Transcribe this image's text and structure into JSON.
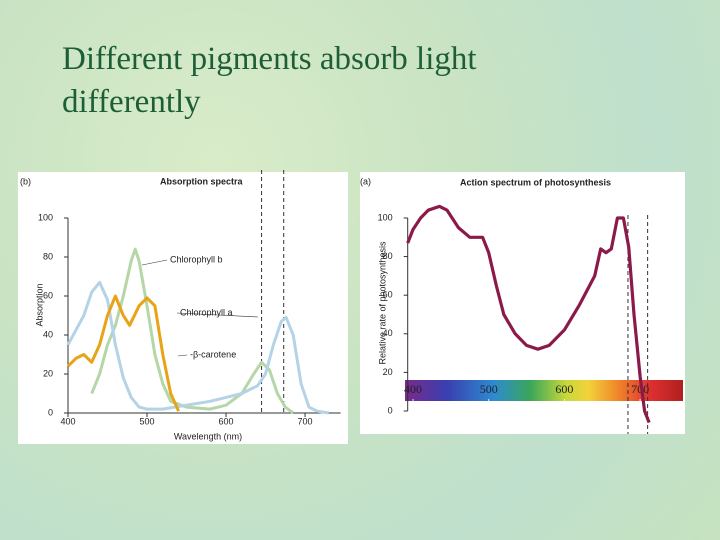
{
  "slide_title": "Different pigments absorb light differently",
  "chart_data": [
    {
      "type": "line",
      "panel": "(b)",
      "title": "Absorption spectra",
      "x_label": "Wavelength (nm)",
      "y_label": "Absorption",
      "xlim": [
        400,
        745
      ],
      "ylim": [
        0,
        114
      ],
      "xticks": [
        400,
        500,
        600,
        700
      ],
      "yticks": [
        0,
        20,
        40,
        60,
        80,
        100
      ],
      "vlines": [
        645,
        673
      ],
      "series": [
        {
          "name": "Chlorophyll b",
          "color": "#b5d6a7",
          "x": [
            430,
            440,
            450,
            460,
            470,
            480,
            485,
            490,
            500,
            510,
            520,
            530,
            550,
            580,
            600,
            620,
            635,
            645,
            655,
            665,
            675,
            685
          ],
          "values": [
            10,
            20,
            35,
            45,
            60,
            78,
            84,
            78,
            55,
            30,
            15,
            6,
            3,
            2,
            4,
            10,
            20,
            26,
            22,
            10,
            3,
            0
          ]
        },
        {
          "name": "Chlorophyll a",
          "color": "#b4d3e6",
          "x": [
            400,
            420,
            430,
            440,
            450,
            460,
            470,
            480,
            490,
            500,
            520,
            550,
            580,
            600,
            620,
            640,
            650,
            660,
            670,
            676,
            685,
            695,
            705,
            715,
            730
          ],
          "values": [
            35,
            50,
            62,
            67,
            58,
            35,
            18,
            8,
            3,
            2,
            2,
            4,
            6,
            8,
            10,
            14,
            20,
            35,
            47,
            49,
            40,
            15,
            3,
            1,
            0
          ]
        },
        {
          "name": "-β-carotene",
          "color": "#e8a317",
          "x": [
            400,
            410,
            420,
            430,
            440,
            450,
            460,
            470,
            478,
            490,
            500,
            510,
            520,
            530,
            540
          ],
          "values": [
            24,
            28,
            30,
            26,
            35,
            50,
            60,
            50,
            45,
            55,
            59,
            55,
            30,
            10,
            1
          ]
        }
      ]
    },
    {
      "type": "line",
      "panel": "(a)",
      "title": "Action spectrum of photosynthesis",
      "y_label": "Relative rate of photosynthesis",
      "xlim": [
        389,
        757
      ],
      "ylim": [
        -10,
        122
      ],
      "xticks": [
        400,
        500,
        600,
        700
      ],
      "yticks": [
        0,
        20,
        40,
        60,
        80,
        100
      ],
      "vlines": [
        684,
        710
      ],
      "series": [
        {
          "color": "#8b1a4a",
          "x": [
            393,
            400,
            410,
            420,
            435,
            445,
            460,
            475,
            492,
            500,
            510,
            520,
            535,
            550,
            565,
            580,
            600,
            620,
            640,
            648,
            655,
            662,
            670,
            678,
            685,
            692,
            700,
            706,
            712
          ],
          "values": [
            87,
            94,
            100,
            104,
            106,
            104,
            95,
            90,
            90,
            82,
            65,
            50,
            40,
            34,
            32,
            34,
            42,
            55,
            70,
            84,
            82,
            84,
            100,
            100,
            85,
            50,
            18,
            0,
            -6
          ]
        }
      ]
    }
  ]
}
